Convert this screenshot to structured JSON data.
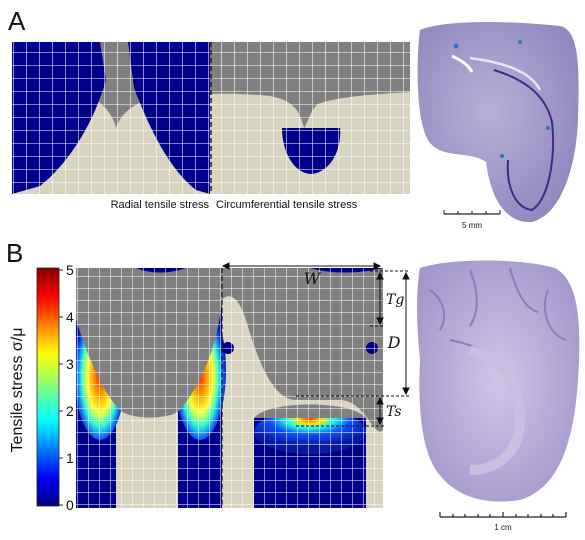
{
  "panelA": {
    "letter": "A",
    "left_caption": "Radial tensile stress",
    "right_caption": "Circumferential tensile stress",
    "scale_label": "5 mm"
  },
  "panelB": {
    "letter": "B",
    "colorbar_label": "Tensile stress σ/μ",
    "colorbar_ticks": [
      "0",
      "1",
      "2",
      "3",
      "4",
      "5"
    ],
    "dim_W": "W",
    "dim_D": "D",
    "dim_Tg": "Tg",
    "dim_Ts": "Ts",
    "scale_label": "1 cm"
  },
  "colors": {
    "gray": "#808080",
    "beige": "#d8d4c0",
    "blue": "#00008b",
    "tissue": "#a59bc8"
  }
}
